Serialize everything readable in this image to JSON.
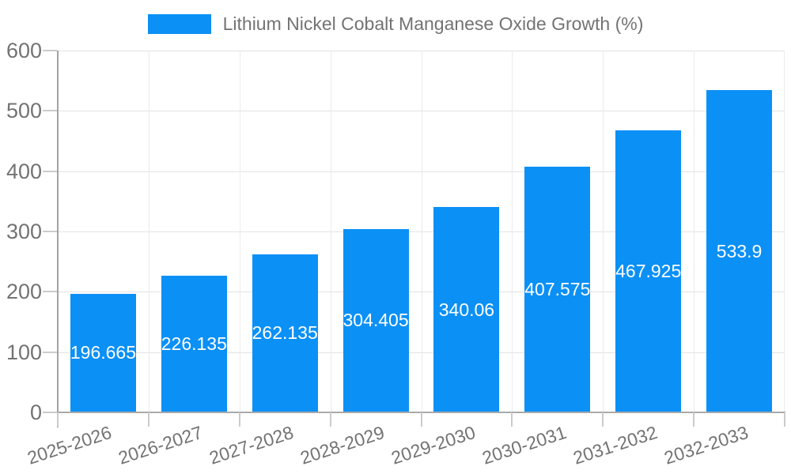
{
  "legend": {
    "label": "Lithium Nickel Cobalt Manganese Oxide Growth (%)"
  },
  "chart_data": {
    "type": "bar",
    "title": "",
    "categories": [
      "2025-2026",
      "2026-2027",
      "2027-2028",
      "2028-2029",
      "2029-2030",
      "2030-2031",
      "2031-2032",
      "2032-2033"
    ],
    "series": [
      {
        "name": "Lithium Nickel Cobalt Manganese Oxide Growth (%)",
        "values": [
          196.665,
          226.135,
          262.135,
          304.405,
          340.06,
          407.575,
          467.925,
          533.9
        ]
      }
    ],
    "value_labels": [
      "196.665",
      "226.135",
      "262.135",
      "304.405",
      "340.06",
      "407.575",
      "467.925",
      "533.9"
    ],
    "value_label_position": "inside-center",
    "xlabel": "",
    "ylabel": "",
    "ylim": [
      0,
      600
    ],
    "yticks": [
      0,
      100,
      200,
      300,
      400,
      500,
      600
    ],
    "grid": true,
    "legend_position": "top-center"
  },
  "colors": {
    "bar": "#0b90f6",
    "value_text": "#ffffff",
    "tick_text": "#737373",
    "axis_line": "#a3a3a3",
    "tick_mark": "#cbcbcb",
    "h_gridline": "#e3e3e3",
    "v_gridline": "#ebebeb",
    "background": "#ffffff"
  }
}
